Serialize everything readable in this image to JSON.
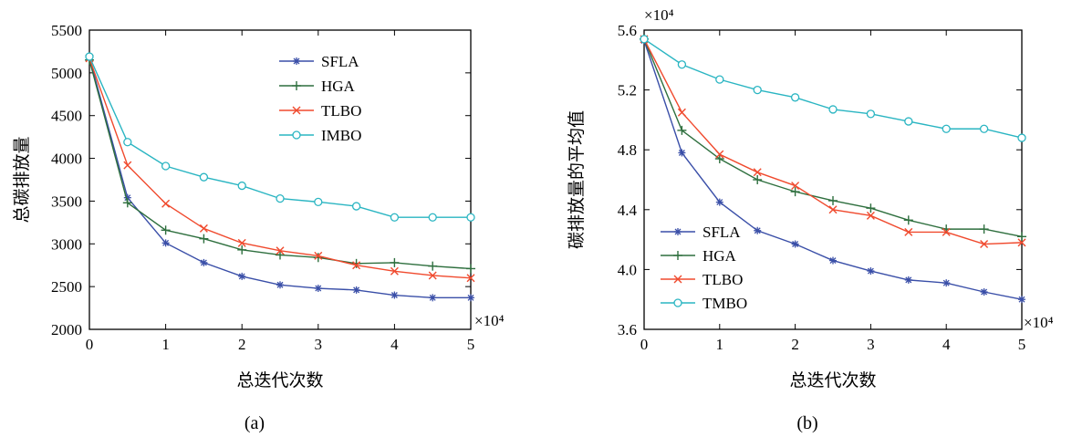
{
  "chart_data": [
    {
      "type": "line",
      "subcaption": "(a)",
      "xlabel": "总迭代次数",
      "ylabel": "总碳排放量",
      "x_multiplier": "×10⁴",
      "xlim": [
        0,
        5
      ],
      "ylim": [
        2000,
        5500
      ],
      "xticks": [
        "0",
        "1",
        "2",
        "3",
        "4",
        "5"
      ],
      "yticks": [
        "2000",
        "2500",
        "3000",
        "3500",
        "4000",
        "4500",
        "5000",
        "5500"
      ],
      "legend_position": "top-right",
      "x": [
        0,
        0.5,
        1,
        1.5,
        2,
        2.5,
        3,
        3.5,
        4,
        4.5,
        5
      ],
      "series": [
        {
          "name": "SFLA",
          "color": "#3a4fa8",
          "marker": "star",
          "values": [
            5180,
            3540,
            3010,
            2780,
            2620,
            2520,
            2480,
            2460,
            2400,
            2370,
            2370
          ]
        },
        {
          "name": "HGA",
          "color": "#2e6f3e",
          "marker": "plus",
          "values": [
            5150,
            3480,
            3160,
            3060,
            2930,
            2870,
            2840,
            2770,
            2780,
            2740,
            2710
          ]
        },
        {
          "name": "TLBO",
          "color": "#f04a2e",
          "marker": "x",
          "values": [
            5170,
            3920,
            3470,
            3180,
            3010,
            2920,
            2860,
            2750,
            2680,
            2630,
            2600
          ]
        },
        {
          "name": "IMBO",
          "color": "#2ab5c2",
          "marker": "circle",
          "values": [
            5190,
            4190,
            3910,
            3780,
            3680,
            3530,
            3490,
            3440,
            3310,
            3310,
            3310
          ]
        }
      ]
    },
    {
      "type": "line",
      "subcaption": "(b)",
      "xlabel": "总迭代次数",
      "ylabel": "碳排放量的平均值",
      "x_multiplier": "×10⁴",
      "y_multiplier": "×10⁴",
      "xlim": [
        0,
        5
      ],
      "ylim": [
        3.6,
        5.6
      ],
      "xticks": [
        "0",
        "1",
        "2",
        "3",
        "4",
        "5"
      ],
      "yticks": [
        "3.6",
        "4.0",
        "4.4",
        "4.8",
        "5.2",
        "5.6"
      ],
      "legend_position": "bottom-left",
      "x": [
        0,
        0.5,
        1,
        1.5,
        2,
        2.5,
        3,
        3.5,
        4,
        4.5,
        5
      ],
      "series": [
        {
          "name": "SFLA",
          "color": "#3a4fa8",
          "marker": "star",
          "values": [
            5.53,
            4.78,
            4.45,
            4.26,
            4.17,
            4.06,
            3.99,
            3.93,
            3.91,
            3.85,
            3.8
          ]
        },
        {
          "name": "HGA",
          "color": "#2e6f3e",
          "marker": "plus",
          "values": [
            5.54,
            4.93,
            4.74,
            4.6,
            4.52,
            4.46,
            4.41,
            4.33,
            4.27,
            4.27,
            4.22
          ]
        },
        {
          "name": "TLBO",
          "color": "#f04a2e",
          "marker": "x",
          "values": [
            5.54,
            5.05,
            4.77,
            4.65,
            4.56,
            4.4,
            4.36,
            4.25,
            4.25,
            4.17,
            4.18
          ]
        },
        {
          "name": "TMBO",
          "color": "#2ab5c2",
          "marker": "circle",
          "values": [
            5.54,
            5.37,
            5.27,
            5.2,
            5.15,
            5.07,
            5.04,
            4.99,
            4.94,
            4.94,
            4.88
          ]
        }
      ]
    }
  ]
}
